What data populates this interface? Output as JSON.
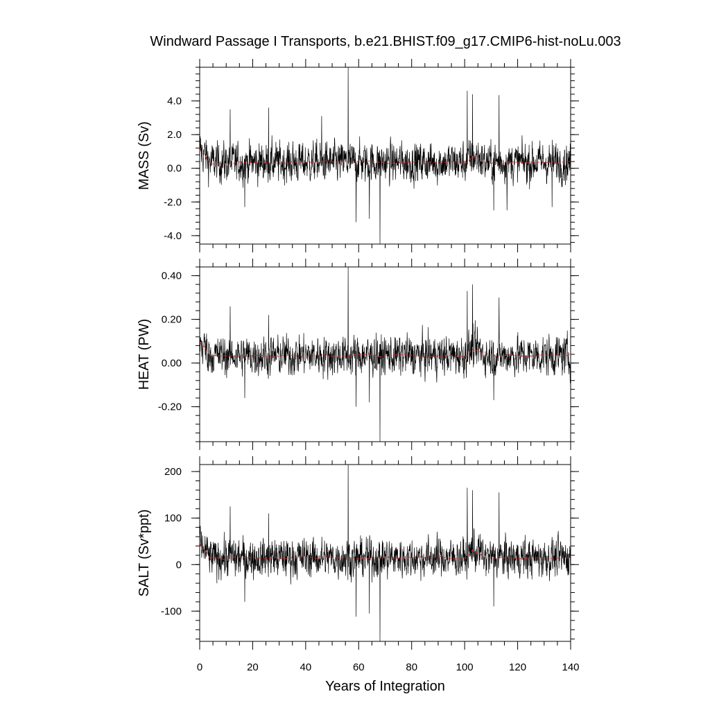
{
  "title": "Windward Passage I Transports, b.e21.BHIST.f09_g17.CMIP6-hist-noLu.003",
  "chart_data": [
    {
      "type": "line",
      "ylabel": "MASS (Sv)",
      "xlabel": "",
      "xlim": [
        0,
        140
      ],
      "ylim": [
        -4.5,
        6.0
      ],
      "yticks": [
        4.0,
        2.0,
        0.0,
        -2.0,
        -4.0
      ],
      "ytick_labels": [
        "4.0",
        "2.0",
        "0.0",
        "-2.0",
        "-4.0"
      ],
      "scale": 1.0,
      "series": [
        {
          "color": "#000000",
          "style": "solid",
          "x_start": 0,
          "x_end": 140,
          "n_points": 1680,
          "mean": 0.35,
          "spread": 0.85,
          "spikes": [
            [
              56,
              6.0
            ],
            [
              68,
              -4.5
            ],
            [
              59,
              -3.2
            ],
            [
              64,
              -3.0
            ],
            [
              101,
              4.6
            ],
            [
              103,
              4.4
            ],
            [
              113,
              4.35
            ],
            [
              26,
              3.6
            ],
            [
              11.5,
              3.5
            ],
            [
              46,
              3.1
            ],
            [
              17,
              -2.3
            ],
            [
              116,
              -2.5
            ],
            [
              111,
              -2.5
            ],
            [
              133,
              -2.3
            ]
          ]
        },
        {
          "color": "#d62728",
          "style": "dashed",
          "x_start": 0,
          "x_end": 140,
          "mean": 0.35,
          "anomalies": [
            [
              0,
              1.2
            ],
            [
              1.5,
              0.9
            ],
            [
              3,
              0.2
            ],
            [
              103,
              0.75
            ],
            [
              105,
              0.7
            ],
            [
              108,
              0.25
            ]
          ]
        }
      ]
    },
    {
      "type": "line",
      "ylabel": "HEAT (PW)",
      "xlabel": "",
      "xlim": [
        0,
        140
      ],
      "ylim": [
        -0.36,
        0.44
      ],
      "yticks": [
        0.4,
        0.2,
        0.0,
        -0.2
      ],
      "ytick_labels": [
        "0.40",
        "0.20",
        "0.00",
        "-0.20"
      ],
      "scale": 0.075,
      "series": [
        {
          "color": "#000000",
          "style": "solid",
          "x_start": 0,
          "x_end": 140,
          "n_points": 1680,
          "mean": 0.035,
          "spread": 0.065,
          "spikes": [
            [
              56,
              0.44
            ],
            [
              68,
              -0.36
            ],
            [
              59,
              -0.2
            ],
            [
              64,
              -0.18
            ],
            [
              101,
              0.33
            ],
            [
              103,
              0.36
            ],
            [
              113,
              0.3
            ],
            [
              26,
              0.22
            ],
            [
              11.5,
              0.26
            ],
            [
              17,
              -0.16
            ],
            [
              111,
              -0.17
            ]
          ]
        },
        {
          "color": "#d62728",
          "style": "dashed",
          "x_start": 0,
          "x_end": 140,
          "mean": 0.035,
          "anomalies": [
            [
              0,
              0.1
            ],
            [
              1.5,
              0.08
            ],
            [
              103,
              0.07
            ],
            [
              105,
              0.07
            ],
            [
              108,
              0.03
            ]
          ]
        }
      ]
    },
    {
      "type": "line",
      "ylabel": "SALT (Sv*ppt)",
      "xlabel": "Years of Integration",
      "xlim": [
        0,
        140
      ],
      "ylim": [
        -165,
        215
      ],
      "yticks": [
        200,
        100,
        0,
        -100
      ],
      "ytick_labels": [
        "200",
        "100",
        "0",
        "-100"
      ],
      "xticks": [
        0,
        20,
        40,
        60,
        80,
        100,
        120,
        140
      ],
      "xtick_labels": [
        "0",
        "20",
        "40",
        "60",
        "80",
        "100",
        "120",
        "140"
      ],
      "scale": 36,
      "series": [
        {
          "color": "#000000",
          "style": "solid",
          "x_start": 0,
          "x_end": 140,
          "n_points": 1680,
          "mean": 15,
          "spread": 30,
          "spikes": [
            [
              56,
              215
            ],
            [
              68,
              -165
            ],
            [
              59,
              -112
            ],
            [
              64,
              -105
            ],
            [
              101,
              165
            ],
            [
              103,
              160
            ],
            [
              113,
              155
            ],
            [
              26,
              110
            ],
            [
              11.5,
              125
            ],
            [
              17,
              -80
            ],
            [
              111,
              -90
            ]
          ]
        },
        {
          "color": "#d62728",
          "style": "dashed",
          "x_start": 0,
          "x_end": 140,
          "mean": 15,
          "anomalies": [
            [
              0,
              45
            ],
            [
              1.5,
              35
            ],
            [
              103,
              32
            ],
            [
              105,
              30
            ],
            [
              108,
              12
            ]
          ]
        }
      ]
    }
  ]
}
